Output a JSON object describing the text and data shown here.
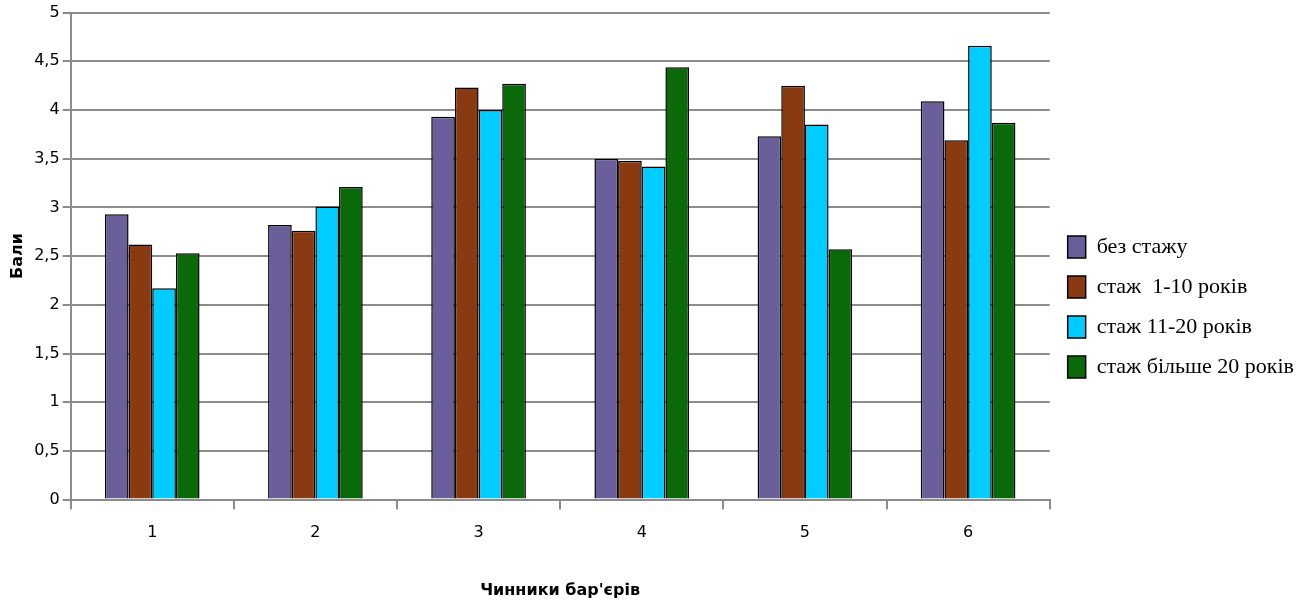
{
  "chart_data": {
    "type": "bar",
    "xlabel": "Чинники бар'єрів",
    "ylabel": "Бали",
    "categories": [
      "1",
      "2",
      "3",
      "4",
      "5",
      "6"
    ],
    "series": [
      {
        "name": "без стажу",
        "color": "#6a5f9a",
        "values": [
          2.93,
          2.82,
          3.93,
          3.5,
          3.73,
          4.09
        ]
      },
      {
        "name": "стаж  1-10 років",
        "color": "#8a3a10",
        "values": [
          2.62,
          2.76,
          4.23,
          3.48,
          4.25,
          3.69
        ]
      },
      {
        "name": "стаж 11-20 років",
        "color": "#00ccff",
        "values": [
          2.17,
          3.01,
          4.0,
          3.42,
          3.85,
          4.66
        ]
      },
      {
        "name": "стаж більше 20 років",
        "color": "#0a6a0a",
        "values": [
          2.53,
          3.21,
          4.27,
          4.44,
          2.57,
          3.87
        ]
      }
    ],
    "ylim": [
      0,
      5
    ],
    "yticks": [
      0,
      {
        "value": 0.5,
        "label": "0,5"
      },
      1,
      {
        "value": 1.5,
        "label": "1,5"
      },
      2,
      {
        "value": 2.5,
        "label": "2,5"
      },
      3,
      {
        "value": 3.5,
        "label": "3,5"
      },
      4,
      {
        "value": 4.5,
        "label": "4,5"
      },
      5
    ],
    "grid": "y",
    "legend": "right"
  }
}
